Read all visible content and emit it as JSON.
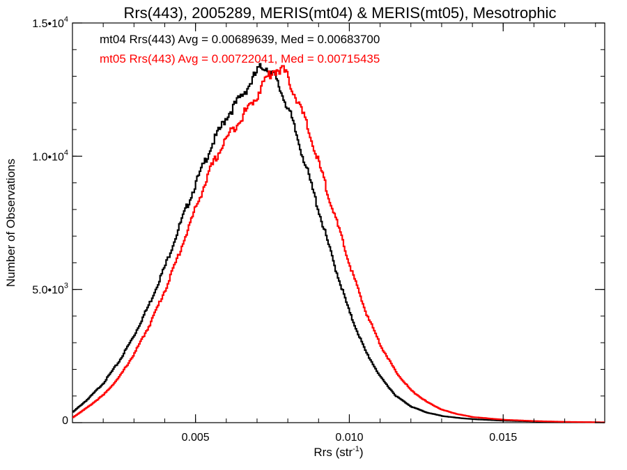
{
  "chart_data": {
    "type": "line",
    "title": "Rrs(443), 2005289, MERIS(mt04) & MERIS(mt05), Mesotrophic",
    "xlabel": "Rrs (str",
    "xlabel_sup": "-1",
    "xlabel_close": ")",
    "ylabel": "Number of Observations",
    "xlim": [
      0.001,
      0.0183
    ],
    "ylim": [
      0,
      15000
    ],
    "x_ticks": [
      {
        "value": 0.005,
        "label": "0.005"
      },
      {
        "value": 0.01,
        "label": "0.010"
      },
      {
        "value": 0.015,
        "label": "0.015"
      }
    ],
    "y_ticks": [
      {
        "value": 0,
        "label": "0",
        "sup": ""
      },
      {
        "value": 5000,
        "label": "5.0•10",
        "sup": "3"
      },
      {
        "value": 10000,
        "label": "1.0•10",
        "sup": "4"
      },
      {
        "value": 15000,
        "label": "1.5•10",
        "sup": "4"
      }
    ],
    "grid": false,
    "legend_position": "top-left",
    "series": [
      {
        "name": "mt04 Rrs(443) Avg = 0.00689639, Med = 0.00683700",
        "color": "#000000",
        "x": [
          0.001,
          0.0015,
          0.002,
          0.0025,
          0.003,
          0.0035,
          0.004,
          0.0045,
          0.005,
          0.0055,
          0.006,
          0.0065,
          0.0068,
          0.007,
          0.0072,
          0.0075,
          0.008,
          0.0085,
          0.009,
          0.0095,
          0.01,
          0.0105,
          0.011,
          0.0115,
          0.012,
          0.0125,
          0.013,
          0.0135,
          0.014,
          0.015,
          0.016,
          0.017,
          0.0183
        ],
        "y": [
          400,
          900,
          1500,
          2300,
          3300,
          4500,
          5900,
          7500,
          9000,
          10400,
          11500,
          12300,
          12800,
          13200,
          13400,
          13100,
          11800,
          9900,
          7900,
          5900,
          4100,
          2700,
          1700,
          1000,
          600,
          380,
          250,
          180,
          130,
          75,
          45,
          25,
          10
        ]
      },
      {
        "name": "mt05 Rrs(443) Avg = 0.00722041, Med = 0.00715435",
        "color": "#ff0000",
        "x": [
          0.001,
          0.0015,
          0.002,
          0.0025,
          0.003,
          0.0035,
          0.004,
          0.0045,
          0.005,
          0.0055,
          0.006,
          0.0065,
          0.007,
          0.0072,
          0.0075,
          0.0078,
          0.008,
          0.0085,
          0.009,
          0.0095,
          0.01,
          0.0105,
          0.011,
          0.0115,
          0.012,
          0.0125,
          0.013,
          0.0135,
          0.014,
          0.015,
          0.016,
          0.017,
          0.0183
        ],
        "y": [
          200,
          600,
          1050,
          1700,
          2600,
          3700,
          5000,
          6500,
          8100,
          9600,
          10700,
          11500,
          12300,
          12800,
          13200,
          13300,
          12900,
          11500,
          9700,
          7800,
          5900,
          4200,
          2900,
          1900,
          1200,
          780,
          480,
          320,
          210,
          110,
          60,
          30,
          12
        ]
      }
    ]
  }
}
